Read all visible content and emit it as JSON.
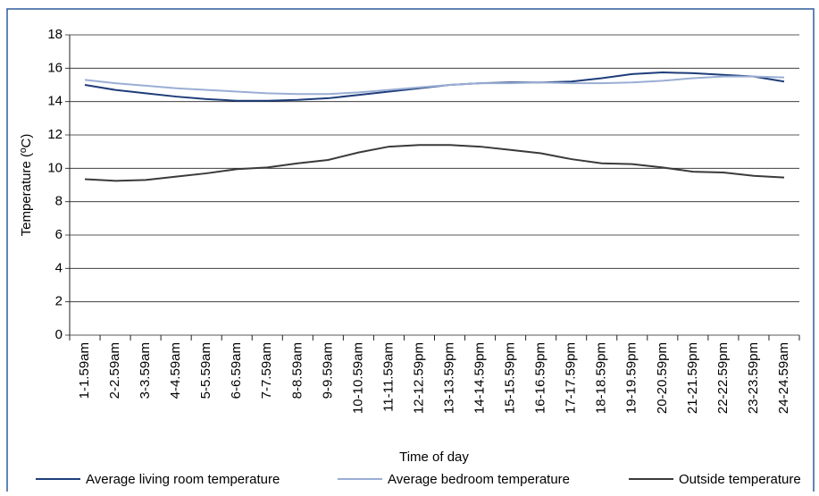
{
  "chart_data": {
    "type": "line",
    "y_label": "Temperature (ºC)",
    "x_label": "Time of day",
    "categories": [
      "1-1.59am",
      "2-2.59am",
      "3-3.59am",
      "4-4.59am",
      "5-5.59am",
      "6-6.59am",
      "7-7.59am",
      "8-8.59am",
      "9-9.59am",
      "10-10.59am",
      "11-11.59am",
      "12-12.59pm",
      "13-13.59pm",
      "14-14.59pm",
      "15-15.59pm",
      "16-16.59pm",
      "17-17.59pm",
      "18-18.59pm",
      "19-19.59pm",
      "20-20.59pm",
      "21-21.59pm",
      "22-22.59pm",
      "23-23.59pm",
      "24-24.59am"
    ],
    "series": [
      {
        "name": "Average living room temperature",
        "color": "#1f3d7a",
        "values": [
          15.0,
          14.7,
          14.5,
          14.3,
          14.15,
          14.05,
          14.05,
          14.1,
          14.2,
          14.4,
          14.6,
          14.8,
          15.0,
          15.1,
          15.15,
          15.15,
          15.2,
          15.4,
          15.65,
          15.75,
          15.7,
          15.6,
          15.5,
          15.2
        ]
      },
      {
        "name": "Average bedroom temperature",
        "color": "#9aaed4",
        "values": [
          15.3,
          15.1,
          14.95,
          14.8,
          14.7,
          14.6,
          14.5,
          14.45,
          14.45,
          14.55,
          14.7,
          14.85,
          15.0,
          15.1,
          15.1,
          15.15,
          15.1,
          15.1,
          15.15,
          15.25,
          15.4,
          15.5,
          15.5,
          15.45
        ]
      },
      {
        "name": "Outside temperature",
        "color": "#3a3a3a",
        "values": [
          9.35,
          9.25,
          9.3,
          9.5,
          9.7,
          9.95,
          10.05,
          10.3,
          10.5,
          10.95,
          11.3,
          11.4,
          11.4,
          11.3,
          11.1,
          10.9,
          10.55,
          10.3,
          10.25,
          10.05,
          9.8,
          9.75,
          9.55,
          9.45
        ]
      }
    ],
    "ylim": [
      0,
      18
    ],
    "yticks": [
      0,
      2,
      4,
      6,
      8,
      10,
      12,
      14,
      16,
      18
    ],
    "grid": true,
    "legend": "bottom"
  }
}
